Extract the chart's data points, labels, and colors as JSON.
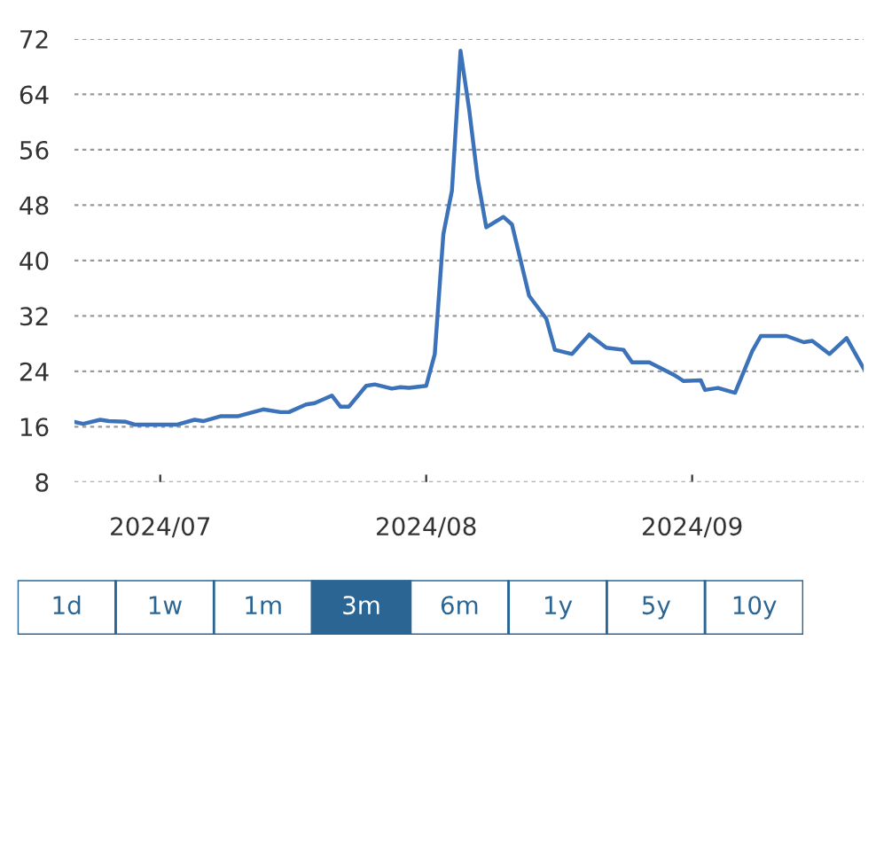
{
  "chart_data": [
    {
      "type": "line",
      "x": [
        "2024-06-21",
        "2024-06-22",
        "2024-06-24",
        "2024-06-25",
        "2024-06-27",
        "2024-06-28",
        "2024-07-03",
        "2024-07-05",
        "2024-07-06",
        "2024-07-08",
        "2024-07-10",
        "2024-07-13",
        "2024-07-15",
        "2024-07-16",
        "2024-07-18",
        "2024-07-19",
        "2024-07-21",
        "2024-07-22",
        "2024-07-23",
        "2024-07-25",
        "2024-07-26",
        "2024-07-28",
        "2024-07-29",
        "2024-07-30",
        "2024-08-01",
        "2024-08-02",
        "2024-08-03",
        "2024-08-04",
        "2024-08-05",
        "2024-08-06",
        "2024-08-07",
        "2024-08-08",
        "2024-08-10",
        "2024-08-11",
        "2024-08-13",
        "2024-08-15",
        "2024-08-16",
        "2024-08-18",
        "2024-08-20",
        "2024-08-22",
        "2024-08-24",
        "2024-08-25",
        "2024-08-27",
        "2024-08-30",
        "2024-08-31",
        "2024-09-02",
        "2024-09-02T12:00",
        "2024-09-04",
        "2024-09-06",
        "2024-09-08",
        "2024-09-09",
        "2024-09-12",
        "2024-09-14",
        "2024-09-15",
        "2024-09-17",
        "2024-09-19",
        "2024-09-21"
      ],
      "series": [
        {
          "color": "#3b72b9",
          "values": [
            16.7,
            16.4,
            17.0,
            16.8,
            16.7,
            16.3,
            16.3,
            17.0,
            16.8,
            17.5,
            17.5,
            18.5,
            18.1,
            18.1,
            19.2,
            19.4,
            20.5,
            18.9,
            18.9,
            21.9,
            22.1,
            21.5,
            21.7,
            21.6,
            21.9,
            26.5,
            43.8,
            50.1,
            70.3,
            61.9,
            51.8,
            44.8,
            46.3,
            45.2,
            34.9,
            31.6,
            27.1,
            26.5,
            29.3,
            27.4,
            27.1,
            25.3,
            25.3,
            23.4,
            22.6,
            22.7,
            21.3,
            21.6,
            20.9,
            26.9,
            29.1,
            29.1,
            28.2,
            28.4,
            26.5,
            28.8,
            24.4
          ]
        }
      ],
      "xlim": [
        "2024-06-21",
        "2024-09-21"
      ],
      "xticks": [
        {
          "value": "2024-07-01",
          "label": "2024/07"
        },
        {
          "value": "2024-08-01",
          "label": "2024/08"
        },
        {
          "value": "2024-09-01",
          "label": "2024/09"
        }
      ],
      "ylim": [
        8,
        72
      ],
      "yticks": [
        8,
        16,
        24,
        32,
        40,
        48,
        56,
        64,
        72
      ],
      "grid": "y",
      "line_style": "solid",
      "marker": "none"
    },
    {
      "type": "other",
      "categories": [
        "1d",
        "1w",
        "1m",
        "3m",
        "6m",
        "1y",
        "5y",
        "10y"
      ],
      "colors": [
        "#ffffff",
        "#ffffff",
        "#ffffff",
        "#2a6593",
        "#ffffff",
        "#ffffff",
        "#ffffff",
        "#ffffff"
      ]
    }
  ]
}
